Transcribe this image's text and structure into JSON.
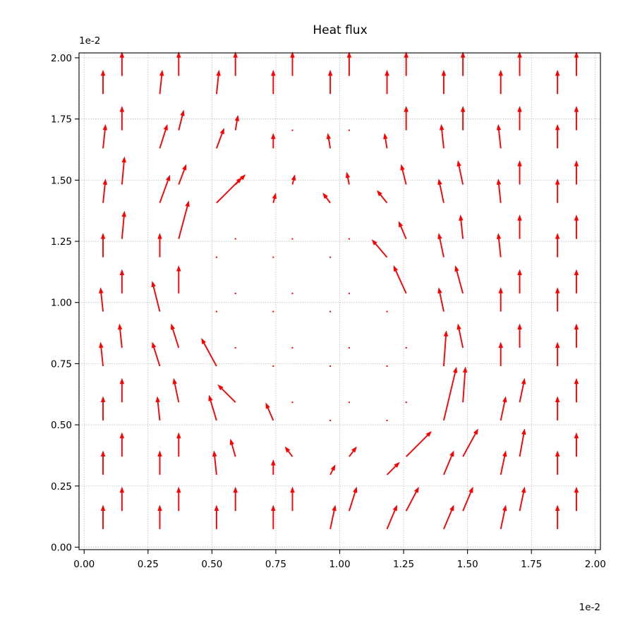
{
  "chart_data": {
    "type": "quiver",
    "title": "Heat flux",
    "xlabel": "",
    "ylabel": "",
    "x_offset_label": "1e-2",
    "y_offset_label": "1e-2",
    "xlim": [
      -0.02,
      2.02
    ],
    "ylim": [
      -0.01,
      2.02
    ],
    "x_ticks": [
      0.0,
      0.25,
      0.5,
      0.75,
      1.0,
      1.25,
      1.5,
      1.75,
      2.0
    ],
    "x_tick_labels": [
      "0.00",
      "0.25",
      "0.50",
      "0.75",
      "1.00",
      "1.25",
      "1.50",
      "1.75",
      "2.00"
    ],
    "y_ticks": [
      0.0,
      0.25,
      0.5,
      0.75,
      1.0,
      1.25,
      1.5,
      1.75,
      2.0
    ],
    "y_tick_labels": [
      "0.00",
      "0.25",
      "0.50",
      "0.75",
      "1.00",
      "1.25",
      "1.50",
      "1.75",
      "2.00"
    ],
    "grid": true,
    "arrow_color": "#ff0000",
    "vector_units": "x-axis data units",
    "arrows": [
      {
        "x": 0.074,
        "y": 0.074,
        "u": 0.0,
        "v": 0.095
      },
      {
        "x": 0.148,
        "y": 0.148,
        "u": 0.0,
        "v": 0.095
      },
      {
        "x": 0.296,
        "y": 0.074,
        "u": 0.0,
        "v": 0.095
      },
      {
        "x": 0.37,
        "y": 0.148,
        "u": 0.0,
        "v": 0.095
      },
      {
        "x": 0.518,
        "y": 0.074,
        "u": 0.0,
        "v": 0.095
      },
      {
        "x": 0.592,
        "y": 0.148,
        "u": 0.0,
        "v": 0.095
      },
      {
        "x": 0.74,
        "y": 0.074,
        "u": 0.0,
        "v": 0.095
      },
      {
        "x": 0.815,
        "y": 0.148,
        "u": 0.0,
        "v": 0.095
      },
      {
        "x": 0.963,
        "y": 0.074,
        "u": 0.02,
        "v": 0.095
      },
      {
        "x": 1.037,
        "y": 0.148,
        "u": 0.03,
        "v": 0.095
      },
      {
        "x": 1.185,
        "y": 0.074,
        "u": 0.04,
        "v": 0.095
      },
      {
        "x": 1.26,
        "y": 0.148,
        "u": 0.05,
        "v": 0.095
      },
      {
        "x": 1.407,
        "y": 0.074,
        "u": 0.04,
        "v": 0.095
      },
      {
        "x": 1.482,
        "y": 0.148,
        "u": 0.04,
        "v": 0.095
      },
      {
        "x": 1.63,
        "y": 0.074,
        "u": 0.02,
        "v": 0.095
      },
      {
        "x": 1.704,
        "y": 0.148,
        "u": 0.02,
        "v": 0.095
      },
      {
        "x": 1.852,
        "y": 0.074,
        "u": 0.0,
        "v": 0.095
      },
      {
        "x": 1.926,
        "y": 0.148,
        "u": 0.0,
        "v": 0.095
      },
      {
        "x": 0.074,
        "y": 0.296,
        "u": 0.0,
        "v": 0.095
      },
      {
        "x": 0.148,
        "y": 0.37,
        "u": 0.0,
        "v": 0.095
      },
      {
        "x": 0.296,
        "y": 0.296,
        "u": 0.0,
        "v": 0.095
      },
      {
        "x": 0.37,
        "y": 0.37,
        "u": 0.0,
        "v": 0.095
      },
      {
        "x": 0.518,
        "y": 0.296,
        "u": -0.01,
        "v": 0.095
      },
      {
        "x": 0.592,
        "y": 0.37,
        "u": -0.02,
        "v": 0.07
      },
      {
        "x": 0.74,
        "y": 0.296,
        "u": 0.0,
        "v": 0.06
      },
      {
        "x": 0.815,
        "y": 0.37,
        "u": -0.03,
        "v": 0.04
      },
      {
        "x": 0.963,
        "y": 0.296,
        "u": 0.02,
        "v": 0.04
      },
      {
        "x": 1.037,
        "y": 0.37,
        "u": 0.03,
        "v": 0.04
      },
      {
        "x": 1.185,
        "y": 0.296,
        "u": 0.05,
        "v": 0.05
      },
      {
        "x": 1.26,
        "y": 0.37,
        "u": 0.1,
        "v": 0.1
      },
      {
        "x": 1.407,
        "y": 0.296,
        "u": 0.04,
        "v": 0.095
      },
      {
        "x": 1.482,
        "y": 0.37,
        "u": 0.06,
        "v": 0.11
      },
      {
        "x": 1.63,
        "y": 0.296,
        "u": 0.02,
        "v": 0.095
      },
      {
        "x": 1.704,
        "y": 0.37,
        "u": 0.02,
        "v": 0.11
      },
      {
        "x": 1.852,
        "y": 0.296,
        "u": 0.0,
        "v": 0.095
      },
      {
        "x": 1.926,
        "y": 0.37,
        "u": 0.0,
        "v": 0.095
      },
      {
        "x": 0.074,
        "y": 0.518,
        "u": 0.0,
        "v": 0.095
      },
      {
        "x": 0.148,
        "y": 0.592,
        "u": 0.0,
        "v": 0.095
      },
      {
        "x": 0.296,
        "y": 0.518,
        "u": -0.01,
        "v": 0.095
      },
      {
        "x": 0.37,
        "y": 0.592,
        "u": -0.02,
        "v": 0.095
      },
      {
        "x": 0.518,
        "y": 0.518,
        "u": -0.03,
        "v": 0.1
      },
      {
        "x": 0.592,
        "y": 0.592,
        "u": -0.07,
        "v": 0.07
      },
      {
        "x": 0.74,
        "y": 0.518,
        "u": -0.03,
        "v": 0.07
      },
      {
        "x": 0.815,
        "y": 0.592,
        "u": 0.0,
        "v": 0.002
      },
      {
        "x": 0.963,
        "y": 0.518,
        "u": 0.0,
        "v": 0.002
      },
      {
        "x": 1.037,
        "y": 0.592,
        "u": 0.0,
        "v": 0.002
      },
      {
        "x": 1.185,
        "y": 0.518,
        "u": 0.0,
        "v": 0.002
      },
      {
        "x": 1.26,
        "y": 0.592,
        "u": 0.0,
        "v": 0.002
      },
      {
        "x": 1.407,
        "y": 0.518,
        "u": 0.05,
        "v": 0.21
      },
      {
        "x": 1.482,
        "y": 0.592,
        "u": 0.01,
        "v": 0.14
      },
      {
        "x": 1.63,
        "y": 0.518,
        "u": 0.02,
        "v": 0.095
      },
      {
        "x": 1.704,
        "y": 0.592,
        "u": 0.02,
        "v": 0.095
      },
      {
        "x": 1.852,
        "y": 0.518,
        "u": 0.0,
        "v": 0.095
      },
      {
        "x": 1.926,
        "y": 0.592,
        "u": 0.0,
        "v": 0.095
      },
      {
        "x": 0.074,
        "y": 0.74,
        "u": -0.01,
        "v": 0.095
      },
      {
        "x": 0.148,
        "y": 0.815,
        "u": -0.01,
        "v": 0.095
      },
      {
        "x": 0.296,
        "y": 0.74,
        "u": -0.03,
        "v": 0.095
      },
      {
        "x": 0.37,
        "y": 0.815,
        "u": -0.03,
        "v": 0.095
      },
      {
        "x": 0.518,
        "y": 0.74,
        "u": -0.06,
        "v": 0.11
      },
      {
        "x": 0.592,
        "y": 0.815,
        "u": 0.0,
        "v": 0.002
      },
      {
        "x": 0.74,
        "y": 0.74,
        "u": 0.0,
        "v": 0.002
      },
      {
        "x": 0.815,
        "y": 0.815,
        "u": 0.0,
        "v": 0.002
      },
      {
        "x": 0.963,
        "y": 0.74,
        "u": 0.0,
        "v": 0.002
      },
      {
        "x": 1.037,
        "y": 0.815,
        "u": 0.0,
        "v": 0.002
      },
      {
        "x": 1.185,
        "y": 0.74,
        "u": 0.0,
        "v": 0.002
      },
      {
        "x": 1.26,
        "y": 0.815,
        "u": 0.0,
        "v": 0.002
      },
      {
        "x": 1.407,
        "y": 0.74,
        "u": 0.01,
        "v": 0.14
      },
      {
        "x": 1.482,
        "y": 0.815,
        "u": -0.02,
        "v": 0.095
      },
      {
        "x": 1.63,
        "y": 0.74,
        "u": 0.0,
        "v": 0.095
      },
      {
        "x": 1.704,
        "y": 0.815,
        "u": 0.0,
        "v": 0.095
      },
      {
        "x": 1.852,
        "y": 0.74,
        "u": 0.0,
        "v": 0.095
      },
      {
        "x": 1.926,
        "y": 0.815,
        "u": 0.0,
        "v": 0.095
      },
      {
        "x": 0.074,
        "y": 0.963,
        "u": -0.01,
        "v": 0.095
      },
      {
        "x": 0.148,
        "y": 1.037,
        "u": 0.0,
        "v": 0.095
      },
      {
        "x": 0.296,
        "y": 0.963,
        "u": -0.03,
        "v": 0.12
      },
      {
        "x": 0.37,
        "y": 1.037,
        "u": 0.0,
        "v": 0.11
      },
      {
        "x": 0.518,
        "y": 0.963,
        "u": 0.0,
        "v": 0.002
      },
      {
        "x": 0.592,
        "y": 1.037,
        "u": 0.0,
        "v": 0.002
      },
      {
        "x": 0.74,
        "y": 0.963,
        "u": 0.0,
        "v": 0.002
      },
      {
        "x": 0.815,
        "y": 1.037,
        "u": 0.0,
        "v": 0.002
      },
      {
        "x": 0.963,
        "y": 0.963,
        "u": 0.0,
        "v": 0.002
      },
      {
        "x": 1.037,
        "y": 1.037,
        "u": 0.0,
        "v": 0.002
      },
      {
        "x": 1.185,
        "y": 0.963,
        "u": 0.0,
        "v": 0.002
      },
      {
        "x": 1.26,
        "y": 1.037,
        "u": -0.05,
        "v": 0.11
      },
      {
        "x": 1.407,
        "y": 0.963,
        "u": -0.02,
        "v": 0.095
      },
      {
        "x": 1.482,
        "y": 1.037,
        "u": -0.03,
        "v": 0.11
      },
      {
        "x": 1.63,
        "y": 0.963,
        "u": 0.0,
        "v": 0.095
      },
      {
        "x": 1.704,
        "y": 1.037,
        "u": 0.0,
        "v": 0.095
      },
      {
        "x": 1.852,
        "y": 0.963,
        "u": 0.0,
        "v": 0.095
      },
      {
        "x": 1.926,
        "y": 1.037,
        "u": 0.0,
        "v": 0.095
      },
      {
        "x": 0.074,
        "y": 1.185,
        "u": 0.0,
        "v": 0.095
      },
      {
        "x": 0.148,
        "y": 1.26,
        "u": 0.01,
        "v": 0.11
      },
      {
        "x": 0.296,
        "y": 1.185,
        "u": 0.0,
        "v": 0.095
      },
      {
        "x": 0.37,
        "y": 1.26,
        "u": 0.04,
        "v": 0.15
      },
      {
        "x": 0.518,
        "y": 1.185,
        "u": 0.0,
        "v": 0.002
      },
      {
        "x": 0.592,
        "y": 1.26,
        "u": 0.0,
        "v": 0.002
      },
      {
        "x": 0.74,
        "y": 1.185,
        "u": 0.0,
        "v": 0.002
      },
      {
        "x": 0.815,
        "y": 1.26,
        "u": 0.0,
        "v": 0.002
      },
      {
        "x": 0.963,
        "y": 1.185,
        "u": 0.0,
        "v": 0.002
      },
      {
        "x": 1.037,
        "y": 1.26,
        "u": 0.0,
        "v": 0.002
      },
      {
        "x": 1.185,
        "y": 1.185,
        "u": -0.06,
        "v": 0.07
      },
      {
        "x": 1.26,
        "y": 1.26,
        "u": -0.03,
        "v": 0.07
      },
      {
        "x": 1.407,
        "y": 1.185,
        "u": -0.02,
        "v": 0.095
      },
      {
        "x": 1.482,
        "y": 1.26,
        "u": -0.01,
        "v": 0.095
      },
      {
        "x": 1.63,
        "y": 1.185,
        "u": -0.01,
        "v": 0.095
      },
      {
        "x": 1.704,
        "y": 1.26,
        "u": 0.0,
        "v": 0.095
      },
      {
        "x": 1.852,
        "y": 1.185,
        "u": 0.0,
        "v": 0.095
      },
      {
        "x": 1.926,
        "y": 1.26,
        "u": 0.0,
        "v": 0.095
      },
      {
        "x": 0.074,
        "y": 1.407,
        "u": 0.01,
        "v": 0.095
      },
      {
        "x": 0.148,
        "y": 1.482,
        "u": 0.01,
        "v": 0.11
      },
      {
        "x": 0.296,
        "y": 1.407,
        "u": 0.04,
        "v": 0.11
      },
      {
        "x": 0.37,
        "y": 1.482,
        "u": 0.03,
        "v": 0.08
      },
      {
        "x": 0.518,
        "y": 1.407,
        "u": 0.1,
        "v": 0.1
      },
      {
        "x": 0.592,
        "y": 1.482,
        "u": 0.04,
        "v": 0.04
      },
      {
        "x": 0.74,
        "y": 1.407,
        "u": 0.01,
        "v": 0.04
      },
      {
        "x": 0.815,
        "y": 1.482,
        "u": 0.01,
        "v": 0.04
      },
      {
        "x": 0.963,
        "y": 1.407,
        "u": -0.03,
        "v": 0.04
      },
      {
        "x": 1.037,
        "y": 1.482,
        "u": -0.01,
        "v": 0.05
      },
      {
        "x": 1.185,
        "y": 1.407,
        "u": -0.04,
        "v": 0.05
      },
      {
        "x": 1.26,
        "y": 1.482,
        "u": -0.02,
        "v": 0.08
      },
      {
        "x": 1.407,
        "y": 1.407,
        "u": -0.02,
        "v": 0.095
      },
      {
        "x": 1.482,
        "y": 1.482,
        "u": -0.02,
        "v": 0.095
      },
      {
        "x": 1.63,
        "y": 1.407,
        "u": -0.01,
        "v": 0.095
      },
      {
        "x": 1.704,
        "y": 1.482,
        "u": 0.0,
        "v": 0.095
      },
      {
        "x": 1.852,
        "y": 1.407,
        "u": 0.0,
        "v": 0.095
      },
      {
        "x": 1.926,
        "y": 1.482,
        "u": 0.0,
        "v": 0.095
      },
      {
        "x": 0.074,
        "y": 1.63,
        "u": 0.01,
        "v": 0.095
      },
      {
        "x": 0.148,
        "y": 1.704,
        "u": 0.0,
        "v": 0.095
      },
      {
        "x": 0.296,
        "y": 1.63,
        "u": 0.03,
        "v": 0.095
      },
      {
        "x": 0.37,
        "y": 1.704,
        "u": 0.02,
        "v": 0.08
      },
      {
        "x": 0.518,
        "y": 1.63,
        "u": 0.03,
        "v": 0.08
      },
      {
        "x": 0.592,
        "y": 1.704,
        "u": 0.01,
        "v": 0.06
      },
      {
        "x": 0.74,
        "y": 1.63,
        "u": 0.0,
        "v": 0.06
      },
      {
        "x": 0.815,
        "y": 1.704,
        "u": 0.0,
        "v": 0.002
      },
      {
        "x": 0.963,
        "y": 1.63,
        "u": -0.01,
        "v": 0.06
      },
      {
        "x": 1.037,
        "y": 1.704,
        "u": 0.0,
        "v": 0.002
      },
      {
        "x": 1.185,
        "y": 1.63,
        "u": -0.01,
        "v": 0.06
      },
      {
        "x": 1.26,
        "y": 1.704,
        "u": 0.0,
        "v": 0.095
      },
      {
        "x": 1.407,
        "y": 1.63,
        "u": -0.01,
        "v": 0.095
      },
      {
        "x": 1.482,
        "y": 1.704,
        "u": 0.0,
        "v": 0.095
      },
      {
        "x": 1.63,
        "y": 1.63,
        "u": -0.01,
        "v": 0.095
      },
      {
        "x": 1.704,
        "y": 1.704,
        "u": 0.0,
        "v": 0.095
      },
      {
        "x": 1.852,
        "y": 1.63,
        "u": 0.0,
        "v": 0.095
      },
      {
        "x": 1.926,
        "y": 1.704,
        "u": 0.0,
        "v": 0.095
      },
      {
        "x": 0.074,
        "y": 1.852,
        "u": 0.0,
        "v": 0.095
      },
      {
        "x": 0.148,
        "y": 1.926,
        "u": 0.0,
        "v": 0.095
      },
      {
        "x": 0.296,
        "y": 1.852,
        "u": 0.01,
        "v": 0.095
      },
      {
        "x": 0.37,
        "y": 1.926,
        "u": 0.0,
        "v": 0.095
      },
      {
        "x": 0.518,
        "y": 1.852,
        "u": 0.01,
        "v": 0.095
      },
      {
        "x": 0.592,
        "y": 1.926,
        "u": 0.0,
        "v": 0.095
      },
      {
        "x": 0.74,
        "y": 1.852,
        "u": 0.0,
        "v": 0.095
      },
      {
        "x": 0.815,
        "y": 1.926,
        "u": 0.0,
        "v": 0.095
      },
      {
        "x": 0.963,
        "y": 1.852,
        "u": 0.0,
        "v": 0.095
      },
      {
        "x": 1.037,
        "y": 1.926,
        "u": 0.0,
        "v": 0.095
      },
      {
        "x": 1.185,
        "y": 1.852,
        "u": 0.0,
        "v": 0.095
      },
      {
        "x": 1.26,
        "y": 1.926,
        "u": 0.0,
        "v": 0.095
      },
      {
        "x": 1.407,
        "y": 1.852,
        "u": 0.0,
        "v": 0.095
      },
      {
        "x": 1.482,
        "y": 1.926,
        "u": 0.0,
        "v": 0.095
      },
      {
        "x": 1.63,
        "y": 1.852,
        "u": 0.0,
        "v": 0.095
      },
      {
        "x": 1.704,
        "y": 1.926,
        "u": 0.0,
        "v": 0.095
      },
      {
        "x": 1.852,
        "y": 1.852,
        "u": 0.0,
        "v": 0.095
      },
      {
        "x": 1.926,
        "y": 1.926,
        "u": 0.0,
        "v": 0.095
      }
    ]
  }
}
